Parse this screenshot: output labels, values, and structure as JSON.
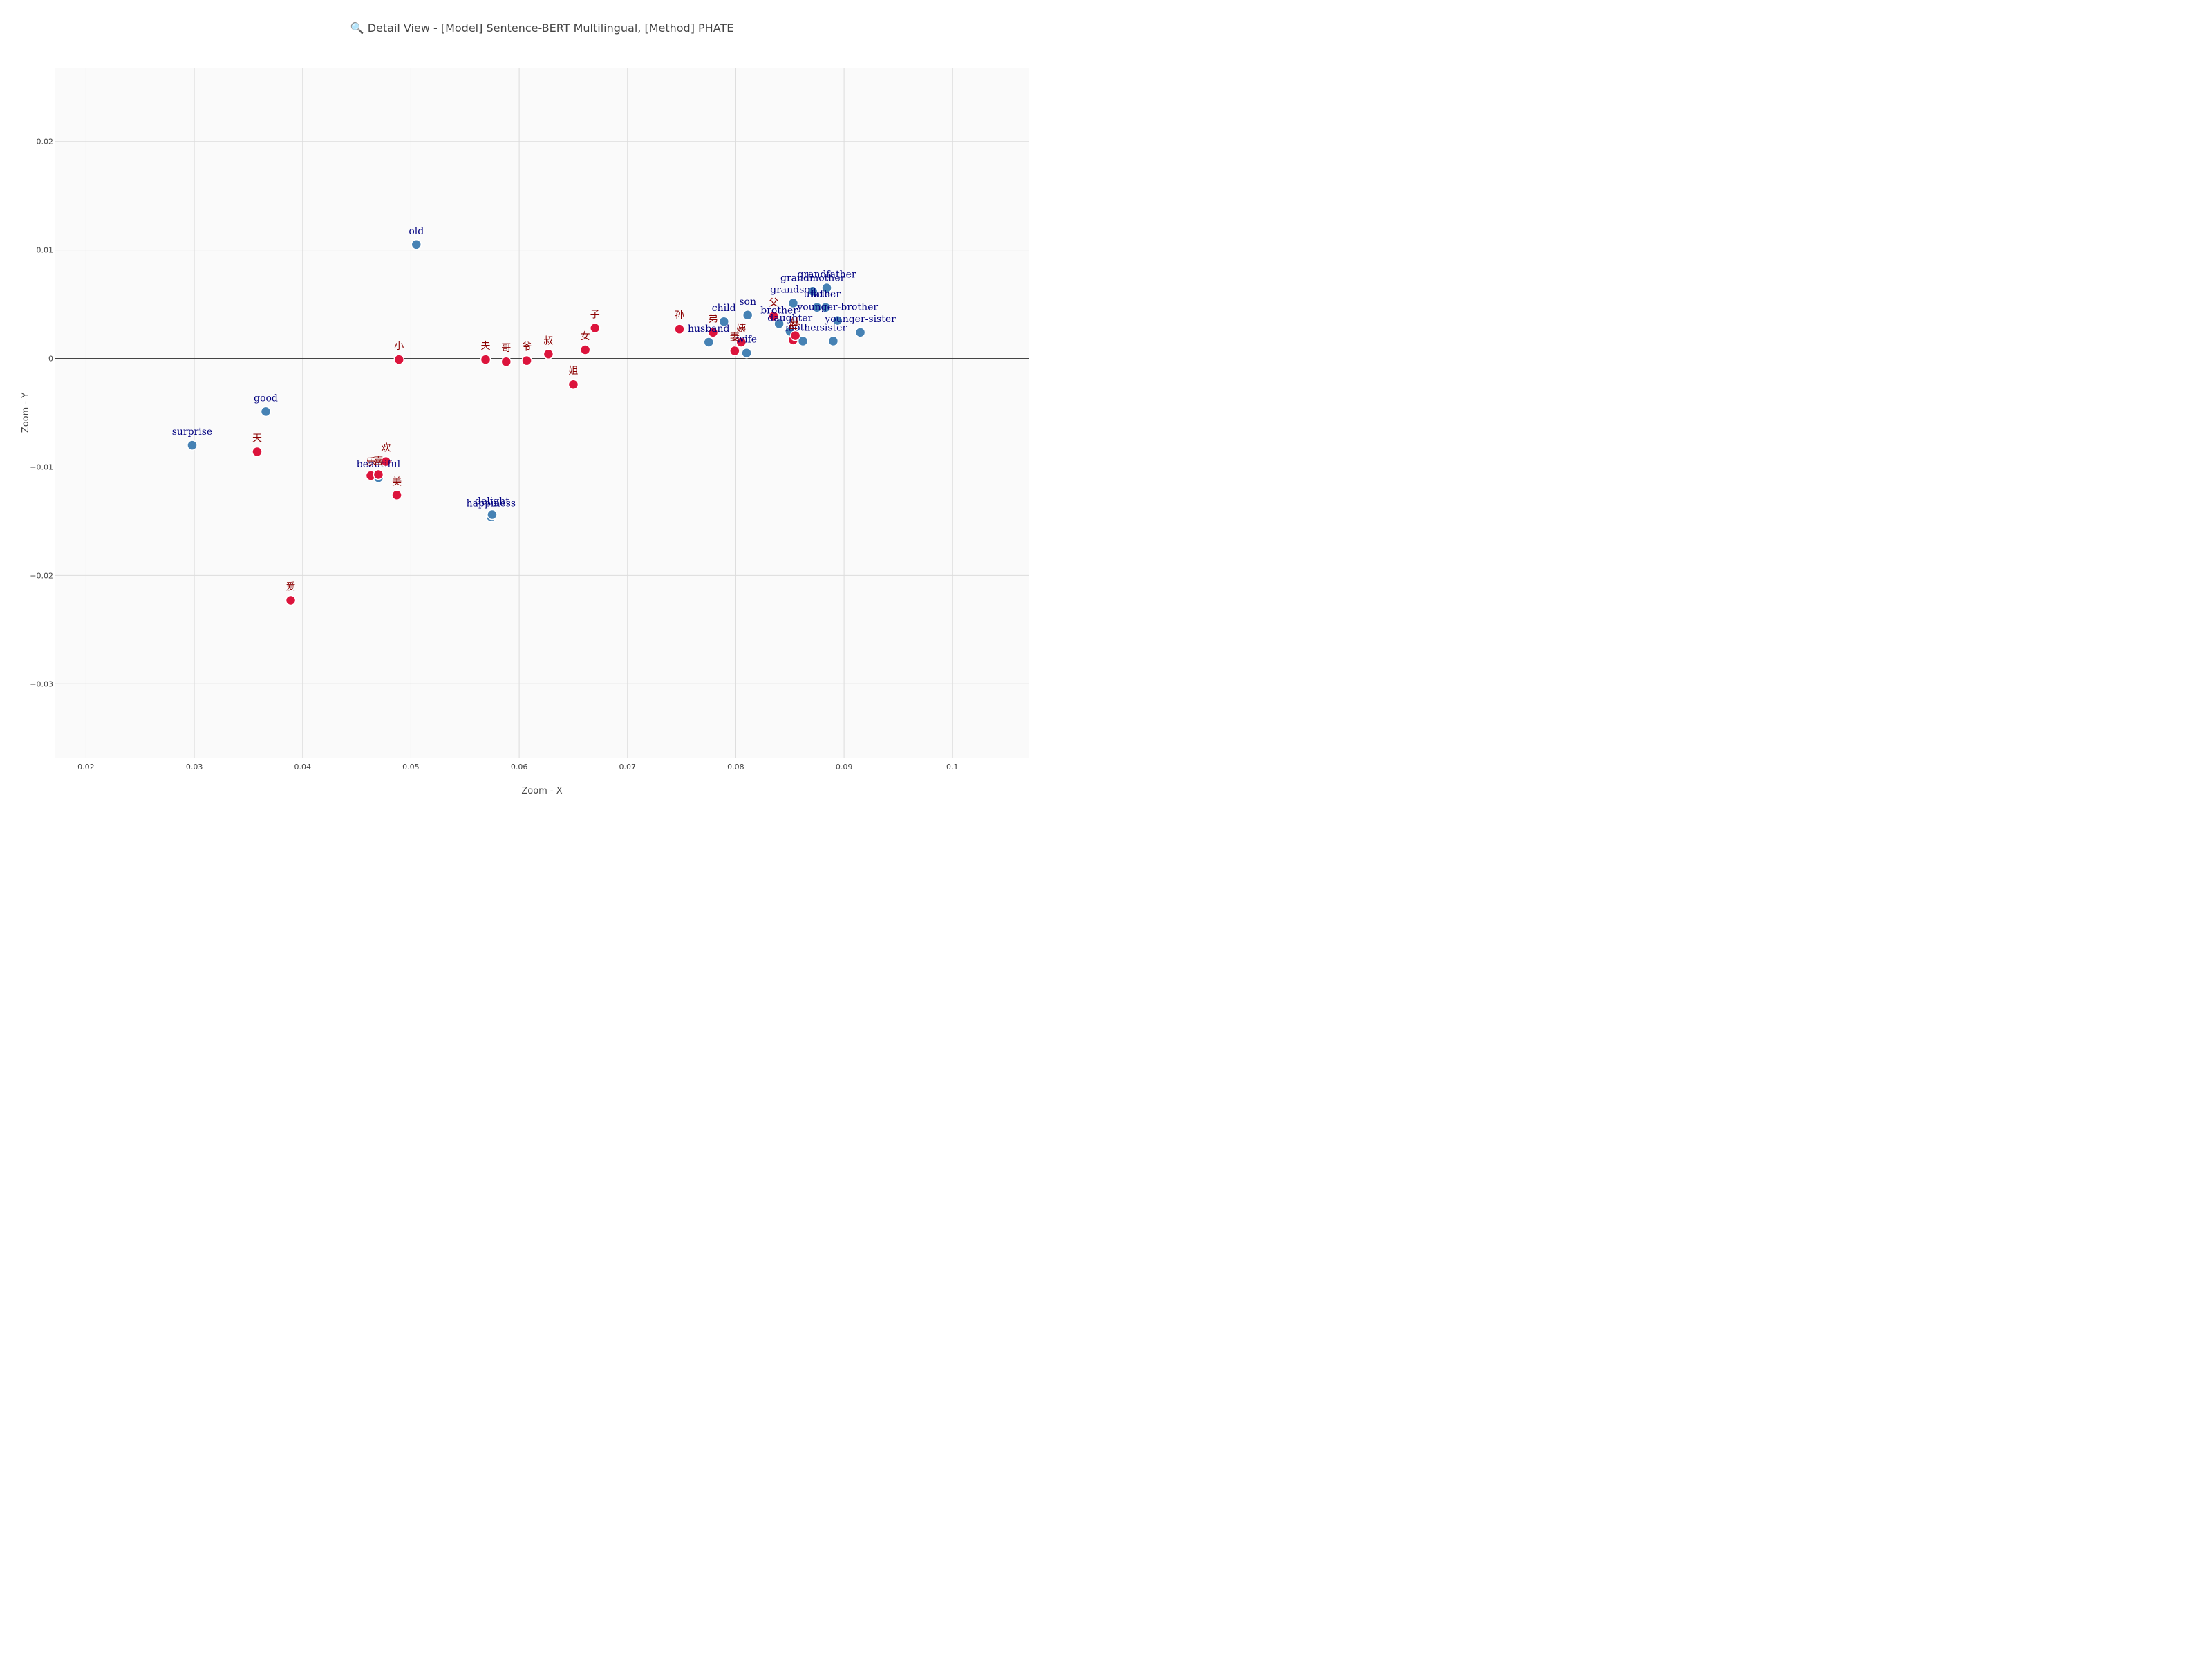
{
  "chart_data": {
    "type": "scatter",
    "title": "🔍 Detail View - [Model] Sentence-BERT Multilingual, [Method] PHATE",
    "xlabel": "Zoom - X",
    "ylabel": "Zoom - Y",
    "xlim": [
      0.0171,
      0.1071
    ],
    "ylim": [
      -0.0368,
      0.0268
    ],
    "x_ticks": [
      0.02,
      0.03,
      0.04,
      0.05,
      0.06,
      0.07,
      0.08,
      0.09,
      0.1
    ],
    "x_tick_labels": [
      "0.02",
      "0.03",
      "0.04",
      "0.05",
      "0.06",
      "0.07",
      "0.08",
      "0.09",
      "0.1"
    ],
    "y_ticks": [
      0.02,
      0.01,
      0,
      -0.01,
      -0.02,
      -0.03
    ],
    "y_tick_labels": [
      "0.02",
      "0.01",
      "0",
      "−0.01",
      "−0.02",
      "−0.03"
    ],
    "grid": true,
    "plot_background": "#fafafa",
    "series": [
      {
        "color": "#4682b4",
        "label_color": "#000080",
        "points": [
          {
            "label": "old",
            "x": 0.0505,
            "y": 0.0105
          },
          {
            "label": "good",
            "x": 0.0366,
            "y": -0.0049
          },
          {
            "label": "surprise",
            "x": 0.0298,
            "y": -0.008
          },
          {
            "label": "beautiful",
            "x": 0.047,
            "y": -0.011
          },
          {
            "label": "happiness",
            "x": 0.0574,
            "y": -0.0146
          },
          {
            "label": "delight",
            "x": 0.0575,
            "y": -0.0144
          },
          {
            "label": "grandfather",
            "x": 0.0884,
            "y": 0.0065
          },
          {
            "label": "grandmother",
            "x": 0.0871,
            "y": 0.0062
          },
          {
            "label": "grandson",
            "x": 0.0853,
            "y": 0.0051
          },
          {
            "label": "uncle",
            "x": 0.0875,
            "y": 0.0047
          },
          {
            "label": "father",
            "x": 0.0883,
            "y": 0.0047
          },
          {
            "label": "child",
            "x": 0.0789,
            "y": 0.0034
          },
          {
            "label": "son",
            "x": 0.0811,
            "y": 0.004
          },
          {
            "label": "brother",
            "x": 0.084,
            "y": 0.0032
          },
          {
            "label": "younger-brother",
            "x": 0.0894,
            "y": 0.0035
          },
          {
            "label": "younger-sister",
            "x": 0.0915,
            "y": 0.0024
          },
          {
            "label": "daughter",
            "x": 0.085,
            "y": 0.0025
          },
          {
            "label": "mother",
            "x": 0.0862,
            "y": 0.0016
          },
          {
            "label": "sister",
            "x": 0.089,
            "y": 0.0016
          },
          {
            "label": "husband",
            "x": 0.0775,
            "y": 0.0015
          },
          {
            "label": "wife",
            "x": 0.081,
            "y": 0.0005
          }
        ]
      },
      {
        "color": "#dc143c",
        "label_color": "#8b0000",
        "points": [
          {
            "label": "小",
            "x": 0.0489,
            "y": -0.0001
          },
          {
            "label": "夫",
            "x": 0.0569,
            "y": -0.0001
          },
          {
            "label": "哥",
            "x": 0.0588,
            "y": -0.0003
          },
          {
            "label": "爷",
            "x": 0.0607,
            "y": -0.0002
          },
          {
            "label": "叔",
            "x": 0.0627,
            "y": 0.0004
          },
          {
            "label": "女",
            "x": 0.0661,
            "y": 0.0008
          },
          {
            "label": "子",
            "x": 0.067,
            "y": 0.0028
          },
          {
            "label": "姐",
            "x": 0.065,
            "y": -0.0024
          },
          {
            "label": "孙",
            "x": 0.0748,
            "y": 0.0027
          },
          {
            "label": "弟",
            "x": 0.0779,
            "y": 0.0024
          },
          {
            "label": "姨",
            "x": 0.0805,
            "y": 0.0015
          },
          {
            "label": "妻",
            "x": 0.0799,
            "y": 0.0007
          },
          {
            "label": "父",
            "x": 0.0835,
            "y": 0.0039
          },
          {
            "label": "母",
            "x": 0.0853,
            "y": 0.0017
          },
          {
            "label": "妹",
            "x": 0.0855,
            "y": 0.0021
          },
          {
            "label": "天",
            "x": 0.0358,
            "y": -0.0086
          },
          {
            "label": "欢",
            "x": 0.0477,
            "y": -0.0095
          },
          {
            "label": "乐",
            "x": 0.0463,
            "y": -0.0108
          },
          {
            "label": "喜",
            "x": 0.047,
            "y": -0.0107
          },
          {
            "label": "美",
            "x": 0.0487,
            "y": -0.0126
          },
          {
            "label": "爱",
            "x": 0.0389,
            "y": -0.0223
          }
        ]
      }
    ]
  }
}
